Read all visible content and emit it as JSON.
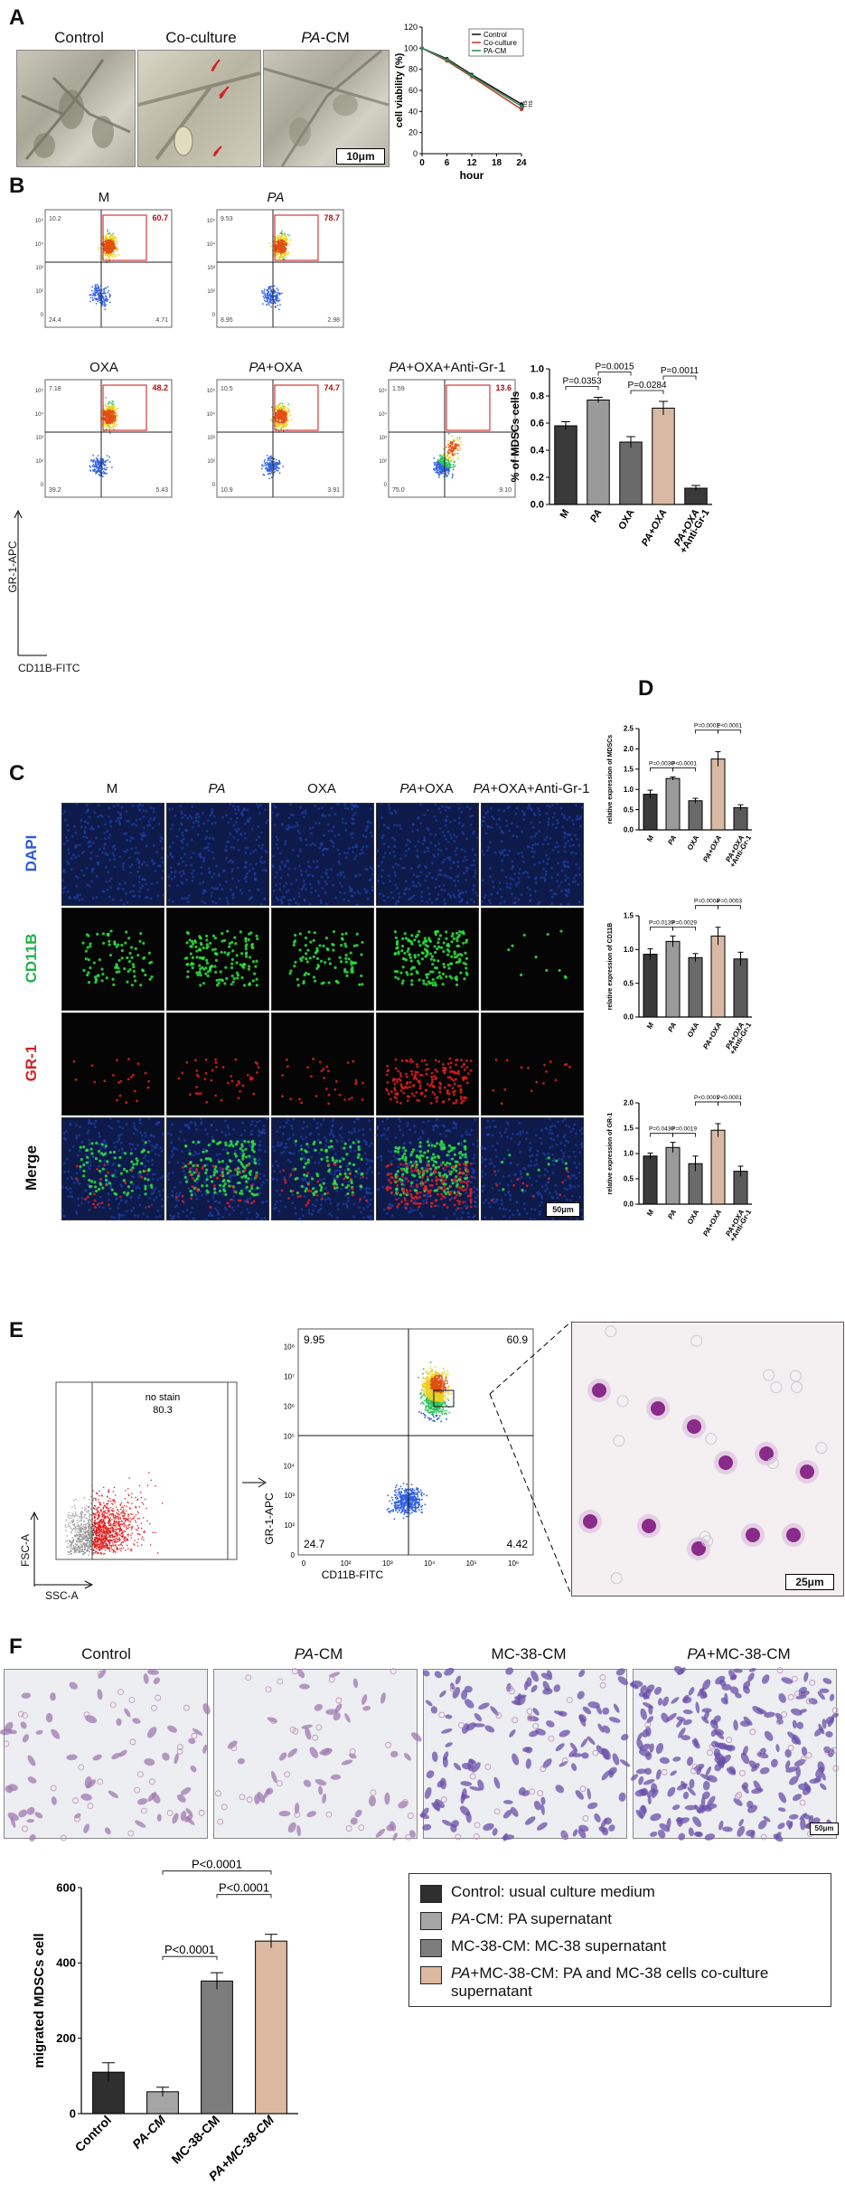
{
  "panelA": {
    "label": "A",
    "images": [
      {
        "title": "Control"
      },
      {
        "title": "Co-culture"
      },
      {
        "title_italic": "PA",
        "title_rest": "-CM"
      }
    ],
    "scale": "10μm",
    "chart_data": {
      "type": "line",
      "title": "",
      "xlabel": "hour",
      "ylabel": "cell viability (%)",
      "xticks": [
        0,
        6,
        12,
        18,
        24
      ],
      "yticks": [
        0,
        20,
        40,
        60,
        80,
        100,
        120
      ],
      "xlim": [
        0,
        24
      ],
      "ylim": [
        0,
        120
      ],
      "x": [
        0,
        6,
        12,
        24
      ],
      "series": [
        {
          "name": "Control",
          "color": "#111111",
          "values": [
            100,
            90,
            75,
            47
          ]
        },
        {
          "name": "Co-culture",
          "color": "#c0392b",
          "values": [
            100,
            88,
            73,
            42
          ]
        },
        {
          "name": "PA-CM",
          "color": "#2e8b57",
          "values": [
            100,
            89,
            74,
            45
          ]
        }
      ],
      "annotations": [
        "ns",
        "ns"
      ],
      "legend_position": "top-right"
    }
  },
  "panelB": {
    "label": "B",
    "flow_plots": [
      {
        "title": "M",
        "q_ul": "10.2",
        "q_ur": "60.7",
        "q_ll": "24.4",
        "q_lr": "4.71"
      },
      {
        "title_italic": "PA",
        "title_rest": "",
        "q_ul": "9.53",
        "q_ur": "78.7",
        "q_ll": "8.95",
        "q_lr": "2.98"
      },
      {
        "title": "OXA",
        "q_ul": "7.18",
        "q_ur": "48.2",
        "q_ll": "39.2",
        "q_lr": "5.43"
      },
      {
        "title_italic": "PA",
        "title_rest": "+OXA",
        "q_ul": "10.5",
        "q_ur": "74.7",
        "q_ll": "10.9",
        "q_lr": "3.91"
      },
      {
        "title_italic": "PA",
        "title_rest": "+OXA+Anti-Gr-1",
        "q_ul": "1.59",
        "q_ur": "13.6",
        "q_ll": "75.0",
        "q_lr": "9.10"
      }
    ],
    "y_axis": "GR-1-APC",
    "x_axis": "CD11B-FITC",
    "chart_data": {
      "type": "bar",
      "title": "",
      "ylabel": "% of MDSCs cells",
      "categories": [
        "M",
        "PA",
        "OXA",
        "PA+OXA",
        "PA+OXA\n+Anti-Gr-1"
      ],
      "values": [
        0.58,
        0.77,
        0.46,
        0.71,
        0.12
      ],
      "errors": [
        0.03,
        0.02,
        0.04,
        0.05,
        0.02
      ],
      "colors": [
        "#3a3a3a",
        "#9a9a9a",
        "#6a6a6a",
        "#d9b9a3",
        "#3a3a3a"
      ],
      "ylim": [
        0,
        1.0
      ],
      "yticks": [
        "0.0",
        "0.2",
        "0.4",
        "0.6",
        "0.8",
        "1.0"
      ],
      "comparisons": [
        {
          "a": 0,
          "b": 1,
          "text": "P=0.0353"
        },
        {
          "a": 1,
          "b": 2,
          "text": "P=0.0015"
        },
        {
          "a": 2,
          "b": 3,
          "text": "P=0.0284"
        },
        {
          "a": 3,
          "b": 4,
          "text": "P=0.0011"
        }
      ]
    }
  },
  "panelC": {
    "label": "C",
    "columns": [
      "M",
      "PA",
      "OXA",
      "PA+OXA",
      "PA+OXA+Anti-Gr-1"
    ],
    "rows": [
      {
        "label": "DAPI",
        "color": "#2d5bd6"
      },
      {
        "label": "CD11B",
        "color": "#22b04a"
      },
      {
        "label": "GR-1",
        "color": "#d42020"
      },
      {
        "label": "Merge",
        "color": "#111111"
      }
    ],
    "scale": "50μm"
  },
  "panelD": {
    "label": "D",
    "charts": [
      {
        "type": "bar",
        "title": "",
        "ylabel": "relative expression of MDSCs",
        "categories": [
          "M",
          "PA",
          "OXA",
          "PA+OXA",
          "PA+OXA\n+Anti-Gr-1"
        ],
        "values": [
          0.88,
          1.27,
          0.72,
          1.75,
          0.55
        ],
        "errors": [
          0.1,
          0.04,
          0.06,
          0.18,
          0.07
        ],
        "colors": [
          "#3a3a3a",
          "#9a9a9a",
          "#6a6a6a",
          "#d9b9a3",
          "#5a5a5a"
        ],
        "ylim": [
          0,
          2.5
        ],
        "yticks": [
          "0.0",
          "0.5",
          "1.0",
          "1.5",
          "2.0",
          "2.5"
        ],
        "comparisons": [
          {
            "a": 0,
            "b": 1,
            "text": "P=0.0030",
            "level": 0
          },
          {
            "a": 1,
            "b": 2,
            "text": "P<0.0001",
            "level": 0
          },
          {
            "a": 2,
            "b": 3,
            "text": "P=0.0001",
            "level": 1
          },
          {
            "a": 3,
            "b": 4,
            "text": "P<0.0001",
            "level": 1
          }
        ]
      },
      {
        "type": "bar",
        "title": "",
        "ylabel": "relative expression of CD11B",
        "categories": [
          "M",
          "PA",
          "OXA",
          "PA+OXA",
          "PA+OXA\n+Anti-Gr-1"
        ],
        "values": [
          0.93,
          1.12,
          0.88,
          1.2,
          0.86
        ],
        "errors": [
          0.08,
          0.08,
          0.06,
          0.13,
          0.1
        ],
        "colors": [
          "#3a3a3a",
          "#9a9a9a",
          "#6a6a6a",
          "#d9b9a3",
          "#5a5a5a"
        ],
        "ylim": [
          0,
          1.5
        ],
        "yticks": [
          "0.0",
          "0.5",
          "1.0",
          "1.5"
        ],
        "comparisons": [
          {
            "a": 0,
            "b": 1,
            "text": "P=0.0139",
            "level": 0
          },
          {
            "a": 1,
            "b": 2,
            "text": "P=0.0029",
            "level": 0
          },
          {
            "a": 2,
            "b": 3,
            "text": "P=0.0004",
            "level": 1
          },
          {
            "a": 3,
            "b": 4,
            "text": "P=0.0003",
            "level": 1
          }
        ]
      },
      {
        "type": "bar",
        "title": "",
        "ylabel": "relative expression of GR-1",
        "categories": [
          "M",
          "PA",
          "OXA",
          "PA+OXA",
          "PA+OXA\n+Anti-Gr-1"
        ],
        "values": [
          0.95,
          1.12,
          0.8,
          1.46,
          0.65
        ],
        "errors": [
          0.06,
          0.1,
          0.15,
          0.13,
          0.1
        ],
        "colors": [
          "#3a3a3a",
          "#9a9a9a",
          "#6a6a6a",
          "#d9b9a3",
          "#5a5a5a"
        ],
        "ylim": [
          0,
          2.0
        ],
        "yticks": [
          "0.0",
          "0.5",
          "1.0",
          "1.5",
          "2.0"
        ],
        "comparisons": [
          {
            "a": 0,
            "b": 1,
            "text": "P=0.0430",
            "level": 0
          },
          {
            "a": 1,
            "b": 2,
            "text": "P=0.0019",
            "level": 0
          },
          {
            "a": 2,
            "b": 3,
            "text": "P<0.0001",
            "level": 1
          },
          {
            "a": 3,
            "b": 4,
            "text": "P<0.0001",
            "level": 1
          }
        ]
      }
    ]
  },
  "panelE": {
    "label": "E",
    "gate1": {
      "name": "no stain",
      "value": "80.3",
      "y_axis": "FSC-A",
      "x_axis": "SSC-A"
    },
    "gate2": {
      "q_ul": "9.95",
      "q_ur": "60.9",
      "q_ll": "24.7",
      "q_lr": "4.42",
      "y_axis": "GR-1-APC",
      "x_axis": "CD11B-FITC",
      "ticks": [
        "0",
        "10²",
        "10³",
        "10⁴",
        "10⁵",
        "10⁶",
        "10⁷",
        "10⁸"
      ]
    },
    "scale": "25μm"
  },
  "panelF": {
    "label": "F",
    "images": [
      {
        "title": "Control"
      },
      {
        "title_italic": "PA",
        "title_rest": "-CM"
      },
      {
        "title": "MC-38-CM"
      },
      {
        "title_italic": "PA",
        "title_rest": "+MC-38-CM"
      }
    ],
    "scale": "50μm",
    "chart_data": {
      "type": "bar",
      "title": "",
      "ylabel": "migrated MDSCs cell",
      "categories": [
        "Control",
        "PA-CM",
        "MC-38-CM",
        "PA+MC-38-CM"
      ],
      "values": [
        110,
        58,
        352,
        458
      ],
      "errors": [
        25,
        12,
        22,
        18
      ],
      "colors": [
        "#2f2f2f",
        "#a5a5a5",
        "#7d7d7d",
        "#dcb9a0"
      ],
      "ylim": [
        0,
        600
      ],
      "yticks": [
        "0",
        "200",
        "400",
        "600"
      ],
      "comparisons": [
        {
          "a": 1,
          "b": 2,
          "text": "P<0.0001",
          "level": 0
        },
        {
          "a": 2,
          "b": 3,
          "text": "P<0.0001",
          "level": 1
        },
        {
          "a": 1,
          "b": 3,
          "text": "P<0.0001",
          "level": 2
        }
      ]
    },
    "legend": [
      {
        "color": "#2f2f2f",
        "text_italic": "",
        "text": "Control: usual culture medium"
      },
      {
        "color": "#a5a5a5",
        "text_italic": "PA",
        "text": "-CM: PA supernatant"
      },
      {
        "color": "#7d7d7d",
        "text_italic": "",
        "text": "MC-38-CM: MC-38 supernatant"
      },
      {
        "color": "#dcb9a0",
        "text_italic": "PA",
        "text": "+MC-38-CM: PA and MC-38 cells co-culture supernatant"
      }
    ]
  }
}
